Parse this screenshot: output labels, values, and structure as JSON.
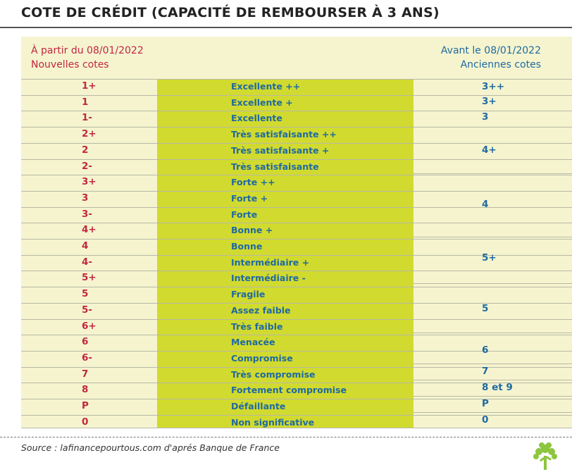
{
  "title": "COTE DE CRÉDIT (CAPACITÉ DE REMBOURSER À 3 ANS)",
  "header": {
    "left_line1": "À partir du 08/01/2022",
    "left_line2": "Nouvelles cotes",
    "right_line1": "Avant le 08/01/2022",
    "right_line2": "Anciennes cotes"
  },
  "rows": [
    {
      "new": "1+",
      "desc": "Excellente ++"
    },
    {
      "new": "1",
      "desc": "Excellente +"
    },
    {
      "new": "1-",
      "desc": "Excellente"
    },
    {
      "new": "2+",
      "desc": "Très satisfaisante ++"
    },
    {
      "new": "2",
      "desc": "Très satisfaisante +"
    },
    {
      "new": "2-",
      "desc": "Très satisfaisante"
    },
    {
      "new": "3+",
      "desc": "Forte ++"
    },
    {
      "new": "3",
      "desc": "Forte +"
    },
    {
      "new": "3-",
      "desc": "Forte"
    },
    {
      "new": "4+",
      "desc": "Bonne +"
    },
    {
      "new": "4",
      "desc": "Bonne"
    },
    {
      "new": "4-",
      "desc": "Intermédiaire +"
    },
    {
      "new": "5+",
      "desc": "Intermédiaire -"
    },
    {
      "new": "5",
      "desc": "Fragile"
    },
    {
      "new": "5-",
      "desc": "Assez faible"
    },
    {
      "new": "6+",
      "desc": "Très faible"
    },
    {
      "new": "6",
      "desc": "Menacée"
    },
    {
      "new": "6-",
      "desc": "Compromise"
    },
    {
      "new": "7",
      "desc": "Très compromise"
    },
    {
      "new": "8",
      "desc": "Fortement compromise"
    },
    {
      "new": "P",
      "desc": "Défaillante"
    },
    {
      "new": "0",
      "desc": "Non significative"
    }
  ],
  "old_ratings": [
    "3++",
    "3+",
    "3",
    "4+",
    "4",
    "5+",
    "5",
    "6",
    "7",
    "8 et 9",
    "P",
    "0"
  ],
  "source": "Source : lafinancepourtous.com d'aprés Banque de France",
  "colors": {
    "new_rating": "#c1273f",
    "old_rating": "#1f6aa0",
    "highlight": "#d1da2f",
    "panel": "#f5f4cf",
    "logo": "#8dc63f"
  },
  "logo_icon": "tree-icon"
}
